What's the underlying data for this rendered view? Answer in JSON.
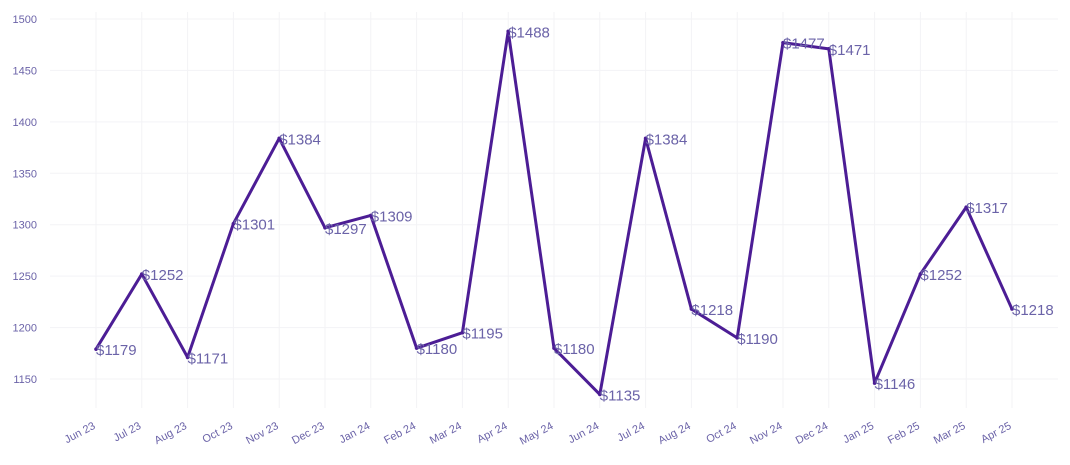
{
  "chart_data": {
    "type": "line",
    "title": "",
    "xlabel": "",
    "ylabel": "",
    "categories": [
      "Jun 23",
      "Jul 23",
      "Aug 23",
      "Oct 23",
      "Nov 23",
      "Dec 23",
      "Jan 24",
      "Feb 24",
      "Mar 24",
      "Apr 24",
      "May 24",
      "Jun 24",
      "Jul 24",
      "Aug 24",
      "Oct 24",
      "Nov 24",
      "Dec 24",
      "Jan 25",
      "Feb 25",
      "Mar 25",
      "Apr 25"
    ],
    "series": [
      {
        "values": [
          1179,
          1252,
          1171,
          1301,
          1384,
          1297,
          1309,
          1180,
          1195,
          1488,
          1180,
          1135,
          1384,
          1218,
          1190,
          1477,
          1471,
          1146,
          1252,
          1317,
          1218
        ],
        "labels": [
          "$1179",
          "$1252",
          "$1171",
          "$1301",
          "$1384",
          "$1297",
          "$1309",
          "$1180",
          "$1195",
          "$1488",
          "$1180",
          "$1135",
          "$1384",
          "$1218",
          "$1190",
          "$1477",
          "$1471",
          "$1146",
          "$1252",
          "$1317",
          "$1218"
        ],
        "color": "#4c1d95"
      }
    ],
    "yticks": [
      1150,
      1200,
      1250,
      1300,
      1350,
      1400,
      1450,
      1500
    ],
    "ytick_labels": [
      "1150",
      "1200",
      "1250",
      "1300",
      "1350",
      "1400",
      "1450",
      "1500"
    ],
    "ylim": [
      1115,
      1500
    ],
    "grid": true,
    "legend": "none"
  }
}
